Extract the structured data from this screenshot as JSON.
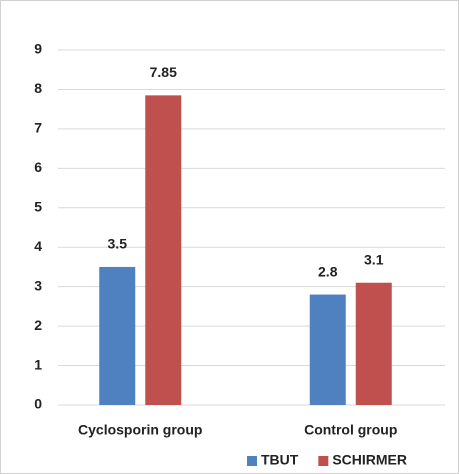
{
  "chart_data": {
    "type": "bar",
    "categories": [
      "Cyclosporin group",
      "Control group"
    ],
    "series": [
      {
        "name": "TBUT",
        "color": "#4f81c1",
        "values": [
          3.5,
          2.8
        ]
      },
      {
        "name": "SCHIRMER",
        "color": "#c0504d",
        "values": [
          7.85,
          3.1
        ]
      }
    ],
    "ylim": [
      0,
      9
    ],
    "yticks": [
      0,
      1,
      2,
      3,
      4,
      5,
      6,
      7,
      8,
      9
    ],
    "grid": true,
    "legend": "bottom"
  }
}
